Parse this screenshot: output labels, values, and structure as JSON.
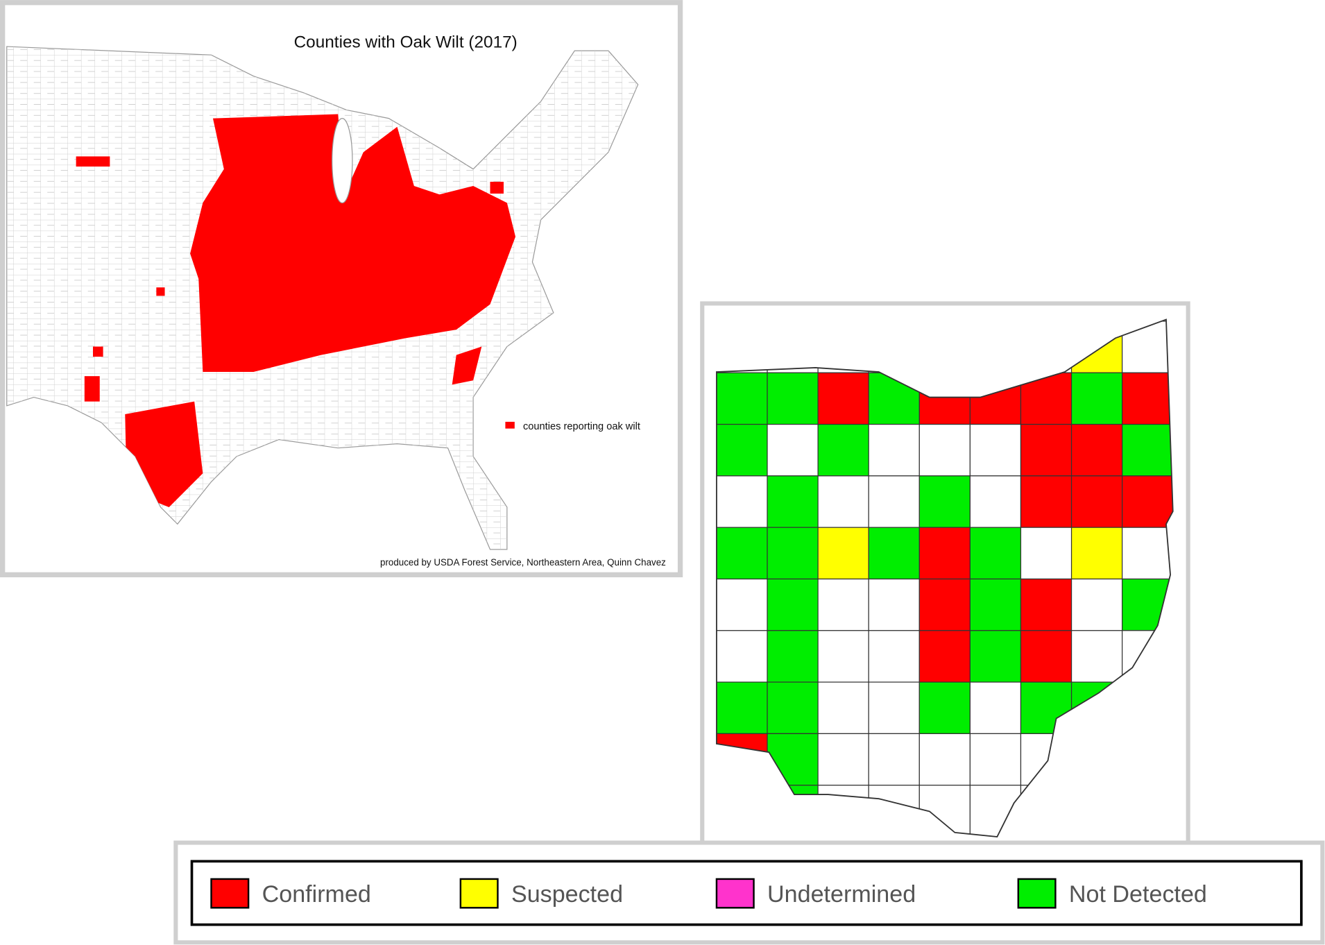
{
  "us_map": {
    "title": "Counties with Oak Wilt (2017)",
    "legend_label": "counties reporting oak wilt",
    "legend_color": "#ff0000",
    "credit": "produced by USDA Forest Service, Northeastern Area, Quinn Chavez"
  },
  "legend": [
    {
      "label": "Confirmed",
      "color": "#ff0000"
    },
    {
      "label": "Suspected",
      "color": "#ffff00"
    },
    {
      "label": "Undetermined",
      "color": "#ff33cc"
    },
    {
      "label": "Not Detected",
      "color": "#00ee00"
    }
  ]
}
